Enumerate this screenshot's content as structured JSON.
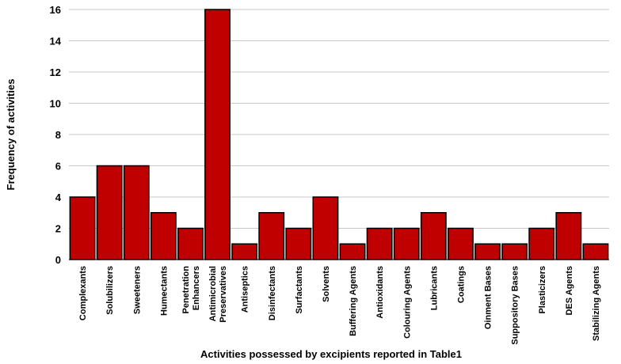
{
  "chart_data": {
    "type": "bar",
    "title": "",
    "xlabel": "Activities possessed by excipients  reported in Table1",
    "ylabel": "Frequency of activities",
    "ylim": [
      0,
      16
    ],
    "yticks": [
      0,
      2,
      4,
      6,
      8,
      10,
      12,
      14,
      16
    ],
    "grid": "horizontal",
    "legend": "none",
    "bar_color": "#c00000",
    "categories": [
      "Complexants",
      "Solubilizers",
      "Sweeteners",
      "Humectants",
      "Penetration\nEnhancers",
      "Antimicrobial\nPreservatives",
      "Antiseptics",
      "Disinfectants",
      "Surfactants",
      "Solvents",
      "Buffering Agents",
      "Antioxidants",
      "Colouring Agents",
      "Lubricants",
      "Coatings",
      "Oinment Bases",
      "Suppository Bases",
      "Plasticizers",
      "DES Agents",
      "Stabilizing Agents"
    ],
    "values": [
      4,
      6,
      6,
      3,
      2,
      16,
      1,
      3,
      2,
      4,
      1,
      2,
      2,
      3,
      2,
      1,
      1,
      2,
      3,
      1
    ]
  }
}
